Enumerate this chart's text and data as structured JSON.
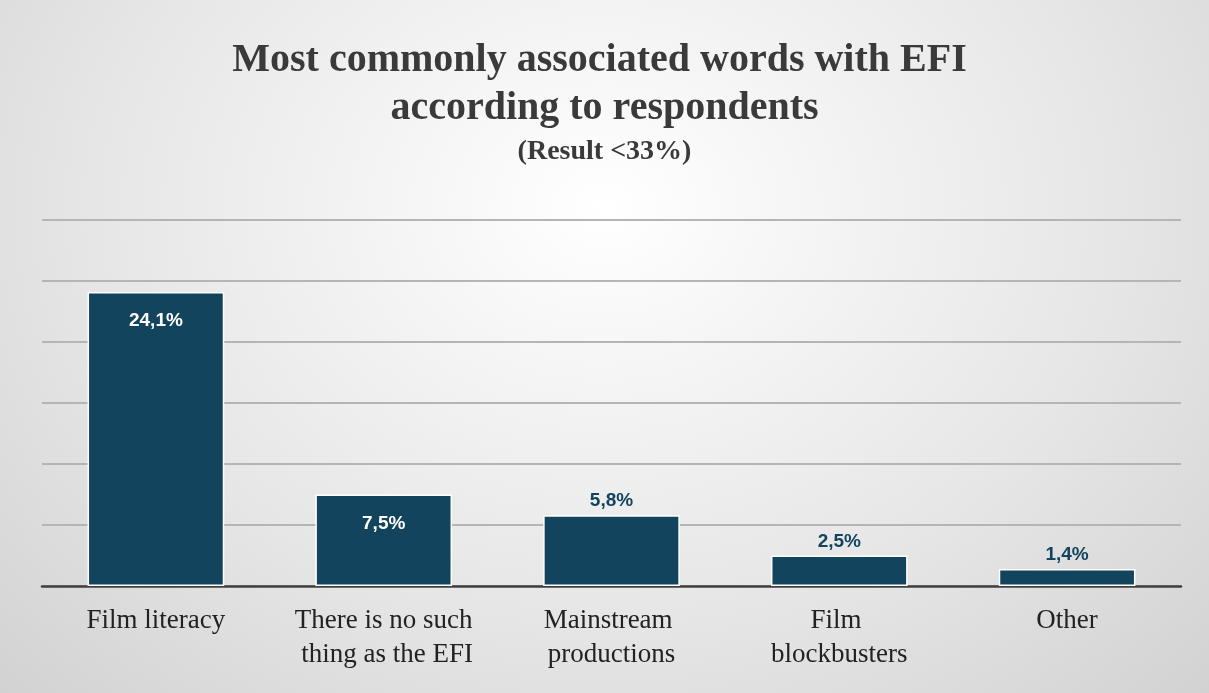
{
  "chart_data": {
    "type": "bar",
    "title": "Most commonly associated words with EFI according to respondents",
    "subtitle": "(Result <33%)",
    "categories": [
      "Film literacy",
      "There is no such thing as the EFI",
      "Mainstream productions",
      "Film blockbusters",
      "Other"
    ],
    "values": [
      24.1,
      7.5,
      5.8,
      2.5,
      1.4
    ],
    "value_labels": [
      "24,1%",
      "7,5%",
      "5,8%",
      "2,5%",
      "1,4%"
    ],
    "color": "#12445e",
    "ylim": [
      0,
      30
    ],
    "yticks": [
      {
        "value": 0,
        "label": null
      },
      {
        "value": 5,
        "label": null
      },
      {
        "value": 10,
        "label": null
      },
      {
        "value": 15,
        "label": null
      },
      {
        "value": 20,
        "label": null
      },
      {
        "value": 25,
        "label": null
      },
      {
        "value": 30,
        "label": null
      }
    ],
    "grid": "y",
    "tick_labels": "x"
  }
}
